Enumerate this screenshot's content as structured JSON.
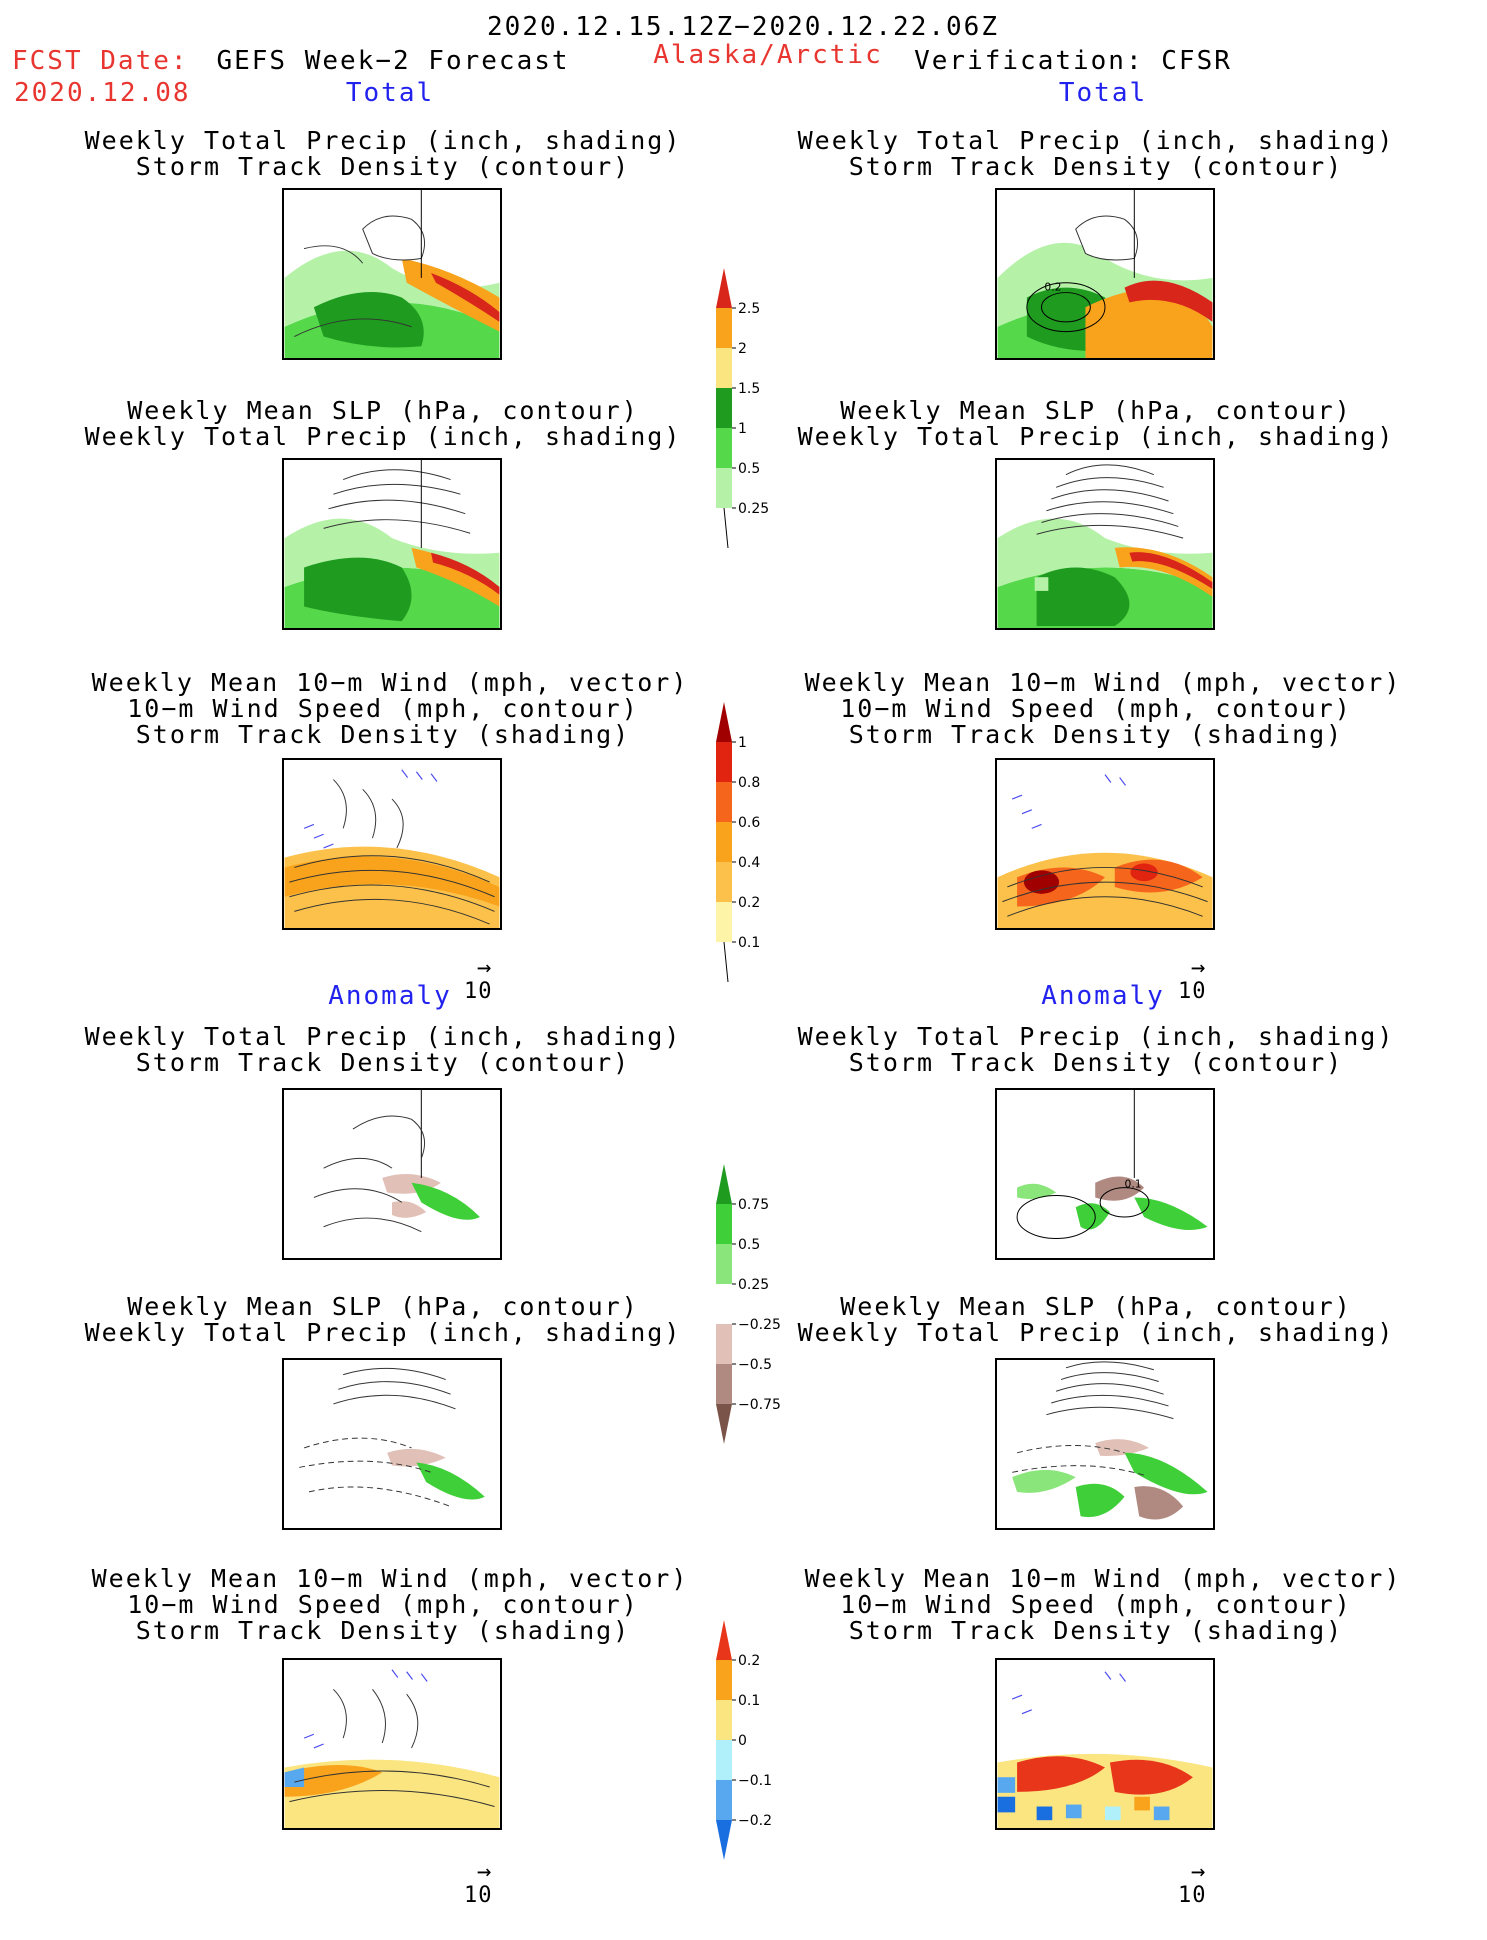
{
  "header": {
    "date_range": "2020.12.15.12Z−2020.12.22.06Z",
    "fcst_date_label": "FCST Date:",
    "fcst_date_value": "2020.12.08",
    "forecast_title": "GEFS Week−2 Forecast",
    "region": "Alaska/Arctic",
    "verification": "Verification: CFSR"
  },
  "sections": {
    "total_left": "Total",
    "total_right": "Total",
    "anomaly_left": "Anomaly",
    "anomaly_right": "Anomaly"
  },
  "panel_titles": {
    "precip_storm": [
      "Weekly Total Precip (inch, shading)",
      "Storm Track Density (contour)"
    ],
    "slp_precip": [
      "Weekly Mean SLP (hPa, contour)",
      "Weekly Total Precip (inch, shading)"
    ],
    "wind_storm": [
      "Weekly Mean 10−m Wind (mph, vector)",
      "10−m Wind Speed (mph, contour)",
      "Storm Track Density (shading)"
    ]
  },
  "contour_labels": {
    "right_total_precip": "0.2",
    "right_anom_precip": "0.1"
  },
  "vector_scale": "10",
  "colorbars": [
    {
      "name": "total-precip-colorbar",
      "ticks": [
        "2.5",
        "2",
        "1.5",
        "1",
        "0.5",
        "0.25"
      ],
      "colors": [
        "#d8261b",
        "#f9a31c",
        "#fbe580",
        "#1f9b20",
        "#55d84a",
        "#b5f2a8"
      ]
    },
    {
      "name": "total-storm-colorbar",
      "ticks": [
        "1",
        "0.8",
        "0.6",
        "0.4",
        "0.2",
        "0.1"
      ],
      "colors": [
        "#a00000",
        "#e12410",
        "#f6651c",
        "#f9a31c",
        "#fbc14a",
        "#fdf4a8"
      ]
    },
    {
      "name": "anom-precip-colorbar",
      "ticks": [
        "0.75",
        "0.5",
        "0.25",
        "−0.25",
        "−0.5",
        "−0.75"
      ],
      "colors": [
        "#1f9b20",
        "#3fcf38",
        "#8ae67a",
        "#ffffff",
        "#e1c1b7",
        "#b08a80",
        "#7a5448"
      ]
    },
    {
      "name": "anom-storm-colorbar",
      "ticks": [
        "0.2",
        "0.1",
        "0",
        "−0.1",
        "−0.2"
      ],
      "colors": [
        "#e8361b",
        "#f9a31c",
        "#fbe580",
        "#b0f0fb",
        "#58a8f0",
        "#1a6fe0"
      ]
    }
  ],
  "colors": {
    "red_text": "#e8352f",
    "blue_text": "#2222ee"
  }
}
